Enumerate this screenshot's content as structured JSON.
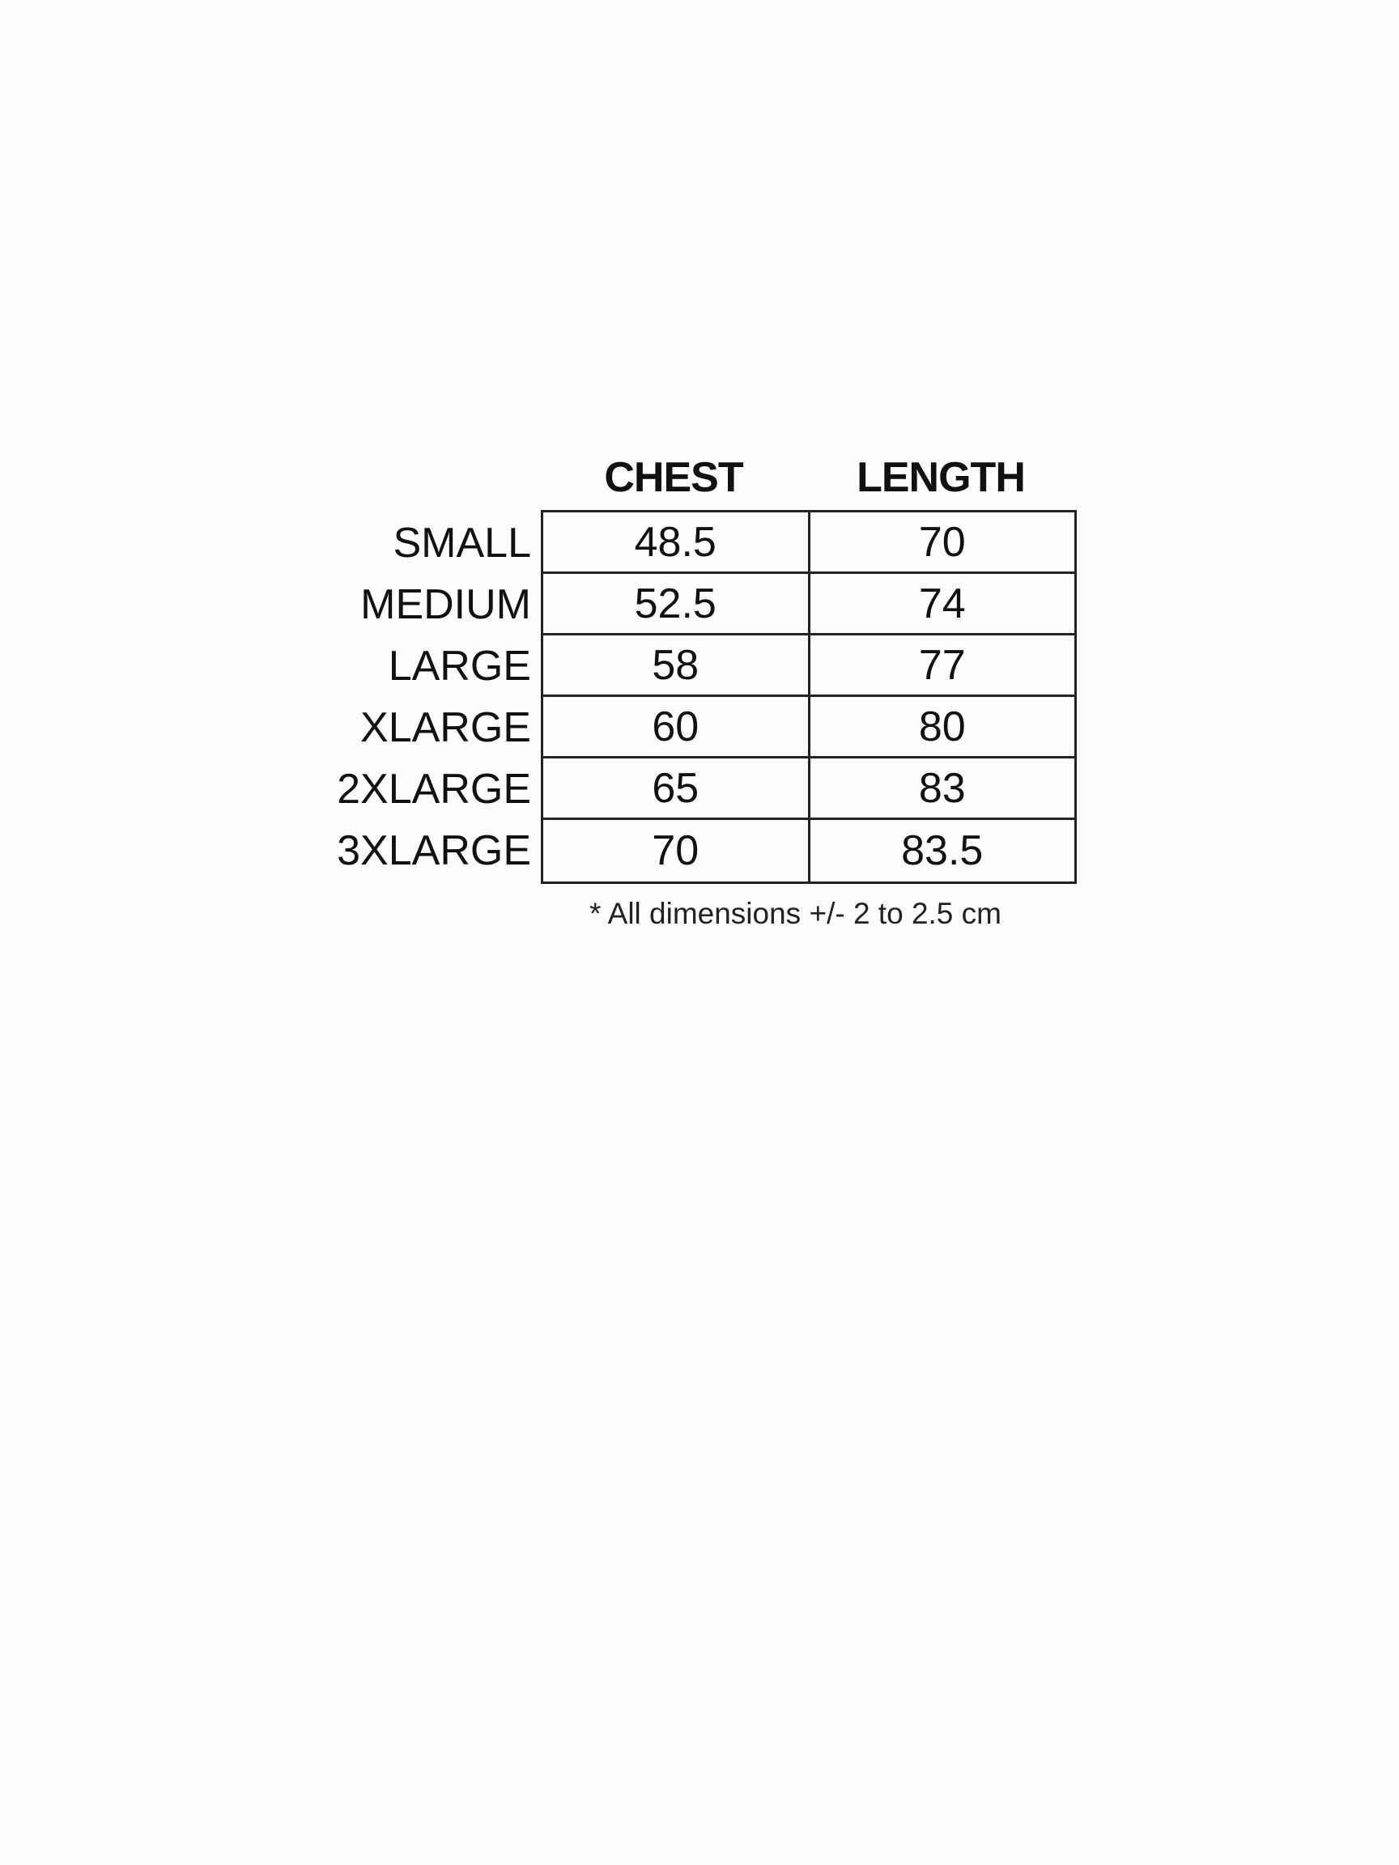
{
  "table": {
    "headers": [
      "CHEST",
      "LENGTH"
    ],
    "rows": [
      {
        "size": "SMALL",
        "chest": "48.5",
        "length": "70"
      },
      {
        "size": "MEDIUM",
        "chest": "52.5",
        "length": "74"
      },
      {
        "size": "LARGE",
        "chest": "58",
        "length": "77"
      },
      {
        "size": "XLARGE",
        "chest": "60",
        "length": "80"
      },
      {
        "size": "2XLARGE",
        "chest": "65",
        "length": "83"
      },
      {
        "size": "3XLARGE",
        "chest": "70",
        "length": "83.5"
      }
    ],
    "footnote": "* All dimensions +/- 2 to 2.5 cm"
  }
}
